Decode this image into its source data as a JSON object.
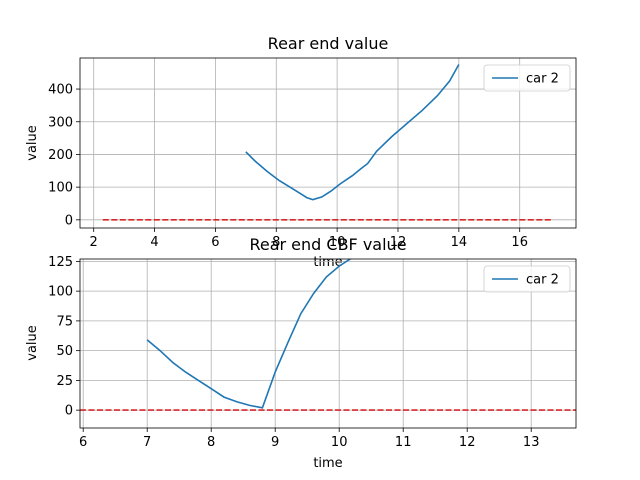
{
  "chart_data": [
    {
      "type": "line",
      "title": "Rear end value",
      "xlabel": "time",
      "ylabel": "value",
      "xlim": [
        1.55,
        17.85
      ],
      "ylim": [
        -25,
        495
      ],
      "xticks": [
        2,
        4,
        6,
        8,
        10,
        12,
        14,
        16
      ],
      "yticks": [
        0,
        100,
        200,
        300,
        400
      ],
      "grid": true,
      "legend": "top-right",
      "series": [
        {
          "name": "car 2",
          "color": "#1f77b4",
          "style": "solid",
          "x": [
            7.0,
            7.3,
            7.7,
            8.1,
            8.5,
            8.8,
            9.0,
            9.2,
            9.5,
            9.8,
            10.1,
            10.5,
            10.8,
            11.0,
            11.3,
            11.8,
            12.3,
            12.8,
            13.3,
            13.7,
            14.0
          ],
          "y": [
            208,
            180,
            148,
            120,
            97,
            80,
            68,
            62,
            70,
            88,
            110,
            135,
            158,
            172,
            210,
            255,
            295,
            335,
            380,
            425,
            475
          ]
        },
        {
          "name": "",
          "color": "#d62728",
          "style": "dashed",
          "x": [
            2.3,
            17.1
          ],
          "y": [
            0,
            0
          ]
        }
      ]
    },
    {
      "type": "line",
      "title": "Rear end CBF value",
      "xlabel": "time",
      "ylabel": "value",
      "xlim": [
        5.95,
        13.7
      ],
      "ylim": [
        -15,
        127
      ],
      "xticks": [
        6,
        7,
        8,
        9,
        10,
        11,
        12,
        13
      ],
      "yticks": [
        0,
        25,
        50,
        75,
        100,
        125
      ],
      "grid": true,
      "legend": "top-right",
      "series": [
        {
          "name": "car 2",
          "color": "#1f77b4",
          "style": "solid",
          "x": [
            7.0,
            7.2,
            7.4,
            7.6,
            7.8,
            8.0,
            8.2,
            8.4,
            8.6,
            8.8,
            9.0,
            9.2,
            9.4,
            9.6,
            9.8,
            10.0,
            10.2
          ],
          "y": [
            59,
            50,
            40,
            32,
            25,
            18,
            11,
            7,
            4,
            2,
            32,
            57,
            81,
            98,
            112,
            121,
            128
          ]
        },
        {
          "name": "",
          "color": "#d62728",
          "style": "dashed",
          "x": [
            5.95,
            13.7
          ],
          "y": [
            0,
            0
          ]
        }
      ]
    }
  ]
}
